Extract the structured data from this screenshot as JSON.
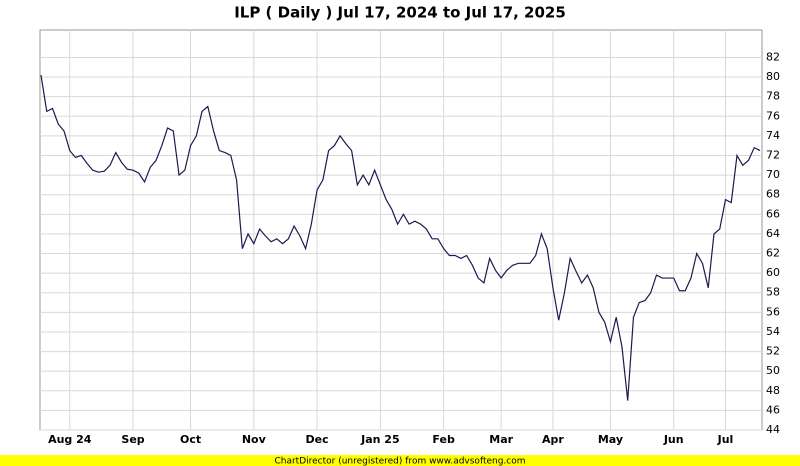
{
  "chart_data": {
    "type": "line",
    "title": "ILP ( Daily ) Jul 17, 2024 to Jul 17, 2025",
    "footer": "ChartDirector (unregistered) from www.advsofteng.com",
    "categories": [
      null,
      null,
      null,
      null,
      null,
      "Aug 24",
      null,
      null,
      null,
      null,
      null,
      null,
      null,
      null,
      null,
      null,
      "Sep",
      null,
      null,
      null,
      null,
      null,
      null,
      null,
      null,
      null,
      "Oct",
      null,
      null,
      null,
      null,
      null,
      null,
      null,
      null,
      null,
      null,
      "Nov",
      null,
      null,
      null,
      null,
      null,
      null,
      null,
      null,
      null,
      null,
      "Dec",
      null,
      null,
      null,
      null,
      null,
      null,
      null,
      null,
      null,
      null,
      "Jan 25",
      null,
      null,
      null,
      null,
      null,
      null,
      null,
      null,
      null,
      null,
      "Feb",
      null,
      null,
      null,
      null,
      null,
      null,
      null,
      null,
      null,
      "Mar",
      null,
      null,
      null,
      null,
      null,
      null,
      null,
      null,
      "Apr",
      null,
      null,
      null,
      null,
      null,
      null,
      null,
      null,
      null,
      "May",
      null,
      null,
      null,
      null,
      null,
      null,
      null,
      null,
      null,
      null,
      "Jun",
      null,
      null,
      null,
      null,
      null,
      null,
      null,
      null,
      "Jul",
      null,
      null,
      null,
      null,
      null,
      null
    ],
    "values": [
      80.2,
      76.5,
      76.8,
      75.2,
      74.5,
      72.5,
      71.8,
      72,
      71.2,
      70.5,
      70.3,
      70.4,
      71,
      72.3,
      71.3,
      70.6,
      70.5,
      70.2,
      69.3,
      70.8,
      71.5,
      73,
      74.8,
      74.5,
      70,
      70.5,
      73,
      74,
      76.5,
      77,
      74.5,
      72.5,
      72.3,
      72,
      69.5,
      62.5,
      64,
      63,
      64.5,
      63.8,
      63.2,
      63.5,
      63,
      63.5,
      64.8,
      63.8,
      62.5,
      65,
      68.5,
      69.5,
      72.5,
      73,
      74,
      73.2,
      72.5,
      69,
      70,
      69,
      70.5,
      69,
      67.5,
      66.5,
      65,
      66,
      65,
      65.3,
      65,
      64.5,
      63.5,
      63.5,
      62.5,
      61.8,
      61.8,
      61.5,
      61.8,
      60.8,
      59.5,
      59,
      61.5,
      60.3,
      59.5,
      60.3,
      60.8,
      61,
      61,
      61,
      61.8,
      64,
      62.5,
      58.5,
      55.2,
      58,
      61.5,
      60.2,
      59,
      59.8,
      58.5,
      56,
      55,
      53,
      55.5,
      52.5,
      47,
      55.5,
      57,
      57.2,
      58,
      59.8,
      59.5,
      59.5,
      59.5,
      58.2,
      58.2,
      59.5,
      62,
      61,
      58.5,
      64,
      64.5,
      67.5,
      67.2,
      72,
      71,
      71.5,
      72.8,
      72.5
    ],
    "color": "#1a1a50",
    "ylim": [
      44,
      84.8
    ],
    "yticks": [
      44,
      46,
      48,
      50,
      52,
      54,
      56,
      58,
      60,
      62,
      64,
      66,
      68,
      70,
      72,
      74,
      76,
      78,
      80,
      82
    ],
    "grid": true
  }
}
